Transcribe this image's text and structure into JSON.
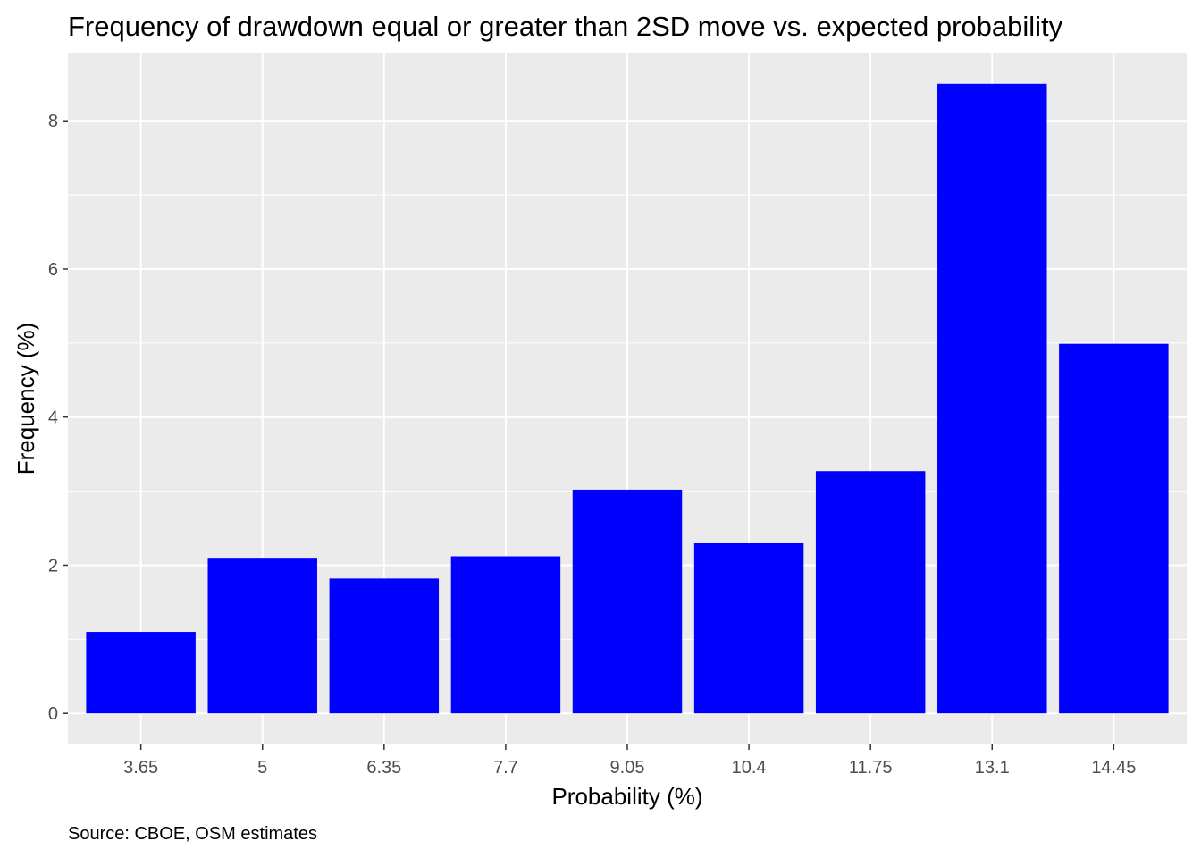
{
  "chart_data": {
    "type": "bar",
    "title": "Frequency of drawdown equal or greater than 2SD move vs. expected probability",
    "xlabel": "Probability (%)",
    "ylabel": "Frequency (%)",
    "caption": "Source: CBOE, OSM estimates",
    "categories": [
      "3.65",
      "5",
      "6.35",
      "7.7",
      "9.05",
      "10.4",
      "11.75",
      "13.1",
      "14.45"
    ],
    "values": [
      1.1,
      2.1,
      1.82,
      2.12,
      3.02,
      2.3,
      3.27,
      8.5,
      4.99
    ],
    "ylim": [
      -0.42,
      8.92
    ],
    "yticks": [
      0,
      2,
      4,
      6,
      8
    ],
    "grid": true,
    "legend": "none",
    "bar_color": "#0000ff",
    "panel_background": "#ebebeb",
    "gridline_color": "#ffffff"
  }
}
